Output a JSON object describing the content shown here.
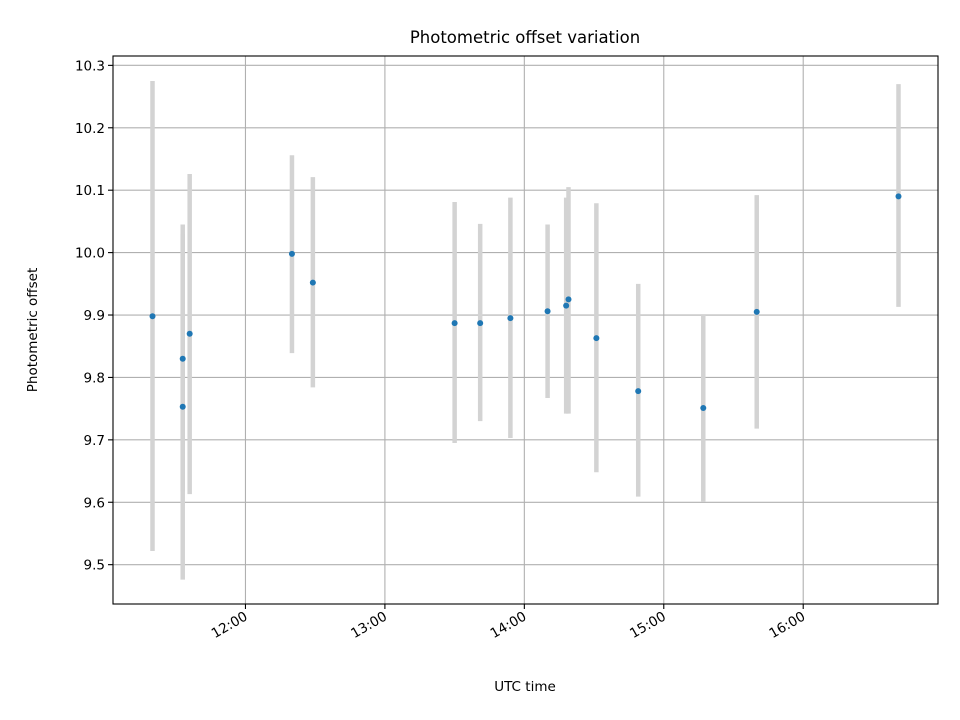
{
  "chart_data": {
    "type": "scatter",
    "title": "Photometric offset variation",
    "xlabel": "UTC time",
    "ylabel": "Photometric offset",
    "x_ticks": [
      "12:00",
      "13:00",
      "14:00",
      "15:00",
      "16:00"
    ],
    "y_ticks": [
      "9.5",
      "9.6",
      "9.7",
      "9.8",
      "9.9",
      "10.0",
      "10.1",
      "10.2",
      "10.3"
    ],
    "xlim": [
      "11:03",
      "16:58"
    ],
    "ylim": [
      9.437,
      10.315
    ],
    "grid": true,
    "marker_color": "#1f77b4",
    "errorbar_color": "#d3d3d3",
    "points": [
      {
        "t": "11:20",
        "y": 9.898,
        "low": 9.522,
        "high": 10.275
      },
      {
        "t": "11:33",
        "y": 9.83,
        "low": 9.617,
        "high": 10.045
      },
      {
        "t": "11:33",
        "y": 9.753,
        "low": 9.476,
        "high": 10.03
      },
      {
        "t": "11:36",
        "y": 9.87,
        "low": 9.613,
        "high": 10.126
      },
      {
        "t": "12:20",
        "y": 9.998,
        "low": 9.839,
        "high": 10.156
      },
      {
        "t": "12:29",
        "y": 9.952,
        "low": 9.784,
        "high": 10.121
      },
      {
        "t": "13:30",
        "y": 9.887,
        "low": 9.695,
        "high": 10.081
      },
      {
        "t": "13:41",
        "y": 9.887,
        "low": 9.73,
        "high": 10.046
      },
      {
        "t": "13:54",
        "y": 9.895,
        "low": 9.703,
        "high": 10.088
      },
      {
        "t": "14:10",
        "y": 9.906,
        "low": 9.767,
        "high": 10.045
      },
      {
        "t": "14:18",
        "y": 9.915,
        "low": 9.742,
        "high": 10.088
      },
      {
        "t": "14:19",
        "y": 9.925,
        "low": 9.742,
        "high": 10.105
      },
      {
        "t": "14:31",
        "y": 9.863,
        "low": 9.648,
        "high": 10.079
      },
      {
        "t": "14:49",
        "y": 9.778,
        "low": 9.609,
        "high": 9.95
      },
      {
        "t": "15:17",
        "y": 9.751,
        "low": 9.601,
        "high": 9.9
      },
      {
        "t": "15:40",
        "y": 9.905,
        "low": 9.718,
        "high": 10.092
      },
      {
        "t": "16:41",
        "y": 10.09,
        "low": 9.913,
        "high": 10.27
      }
    ]
  }
}
